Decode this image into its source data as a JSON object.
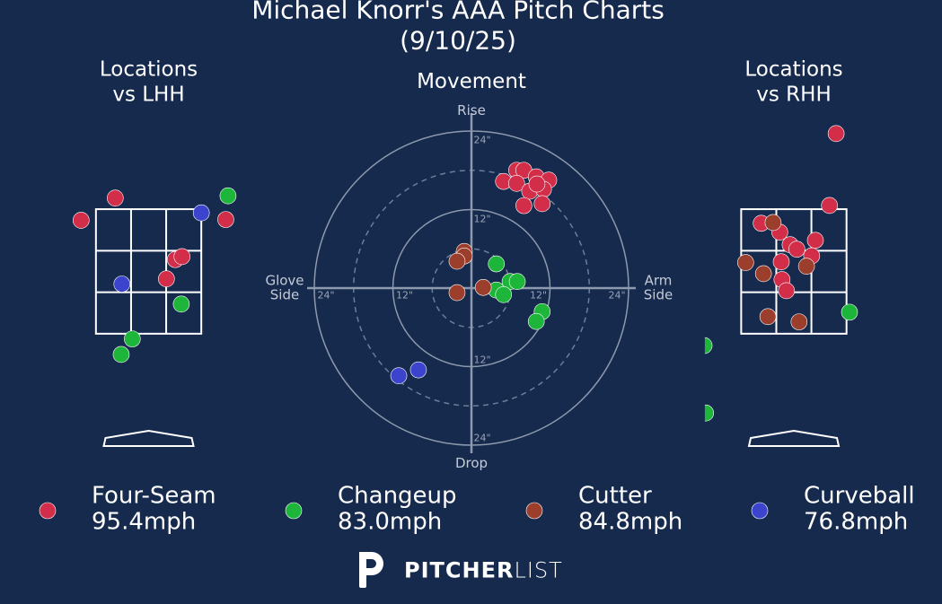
{
  "title": "Michael Knorr's AAA Pitch Charts (9/10/25)",
  "chart_data": [
    {
      "type": "scatter",
      "title": "Locations\nvs LHH",
      "xlim": [
        -1.6,
        1.6
      ],
      "ylim": [
        0,
        5
      ],
      "zone": {
        "x": [
          -0.71,
          0.71
        ],
        "y": [
          1.6,
          3.28
        ]
      },
      "series": [
        {
          "name": "Four-Seam",
          "color": "#d22d49",
          "x": [
            -0.45,
            -0.91,
            1.04,
            0.36,
            0.45,
            0.24
          ],
          "y": [
            3.43,
            3.13,
            3.14,
            2.6,
            2.64,
            2.34
          ]
        },
        {
          "name": "Changeup",
          "color": "#1db53a",
          "x": [
            1.07,
            0.44,
            -0.22,
            -0.37
          ],
          "y": [
            3.46,
            2.0,
            1.53,
            1.32
          ]
        },
        {
          "name": "Curveball",
          "color": "#3c44cd",
          "x": [
            0.71,
            -0.36
          ],
          "y": [
            3.23,
            2.27
          ]
        }
      ]
    },
    {
      "type": "scatter",
      "title": "Movement",
      "xlim": [
        -24,
        24
      ],
      "ylim": [
        -24,
        24
      ],
      "circles": [
        {
          "value": 12,
          "label": "12\""
        },
        {
          "value": 24,
          "label": "24\""
        }
      ],
      "dashed_circles": [
        6,
        18
      ],
      "top_label": "Rise",
      "bottom_label": "Drop",
      "left_label": "Glove\nSide",
      "right_label": "Arm\nSide",
      "series": [
        {
          "name": "Four-Seam",
          "color": "#d22d49",
          "x": [
            6.9,
            8.0,
            4.9,
            6.9,
            9.9,
            11.8,
            8.9,
            11.0,
            8.0,
            10.8,
            10.0
          ],
          "y": [
            18.0,
            18.0,
            16.3,
            16.0,
            17.0,
            16.5,
            14.8,
            15.1,
            12.6,
            12.9,
            15.9
          ]
        },
        {
          "name": "Changeup",
          "color": "#1db53a",
          "x": [
            3.8,
            5.9,
            7.0,
            3.8,
            4.9,
            10.8,
            9.9
          ],
          "y": [
            3.7,
            1.0,
            1.0,
            -0.3,
            -1.0,
            -3.6,
            -5.1
          ]
        },
        {
          "name": "Cutter",
          "color": "#9b3f2c",
          "x": [
            -1.1,
            -1.1,
            -2.2,
            -2.2,
            1.8
          ],
          "y": [
            5.6,
            4.9,
            4.1,
            -0.7,
            0.1
          ]
        },
        {
          "name": "Curveball",
          "color": "#3c44cd",
          "x": [
            -8.1,
            -11.1
          ],
          "y": [
            -12.5,
            -13.4
          ]
        }
      ]
    },
    {
      "type": "scatter",
      "title": "Locations\nvs RHH",
      "xlim": [
        -1.2,
        1.6
      ],
      "ylim": [
        0,
        5
      ],
      "zone": {
        "x": [
          -0.71,
          0.71
        ],
        "y": [
          1.6,
          3.28
        ]
      },
      "series": [
        {
          "name": "Four-Seam",
          "color": "#d22d49",
          "x": [
            0.57,
            0.48,
            -0.44,
            -0.19,
            0.29,
            -0.05,
            0.04,
            0.24,
            -0.17,
            -0.16,
            -0.1
          ],
          "y": [
            4.3,
            3.33,
            3.09,
            2.97,
            2.86,
            2.8,
            2.74,
            2.65,
            2.57,
            2.33,
            2.18
          ]
        },
        {
          "name": "Cutter",
          "color": "#9b3f2c",
          "x": [
            -0.28,
            -0.65,
            0.17,
            -0.41,
            -0.35,
            0.07
          ],
          "y": [
            3.1,
            2.56,
            2.51,
            2.41,
            1.83,
            1.76
          ]
        },
        {
          "name": "Changeup",
          "color": "#1db53a",
          "x": [
            0.75,
            -1.21,
            -1.19
          ],
          "y": [
            1.89,
            1.44,
            0.53
          ]
        }
      ]
    }
  ],
  "legend": [
    {
      "name": "Four-Seam",
      "speed": "95.4mph",
      "color": "#d22d49"
    },
    {
      "name": "Changeup",
      "speed": "83.0mph",
      "color": "#1db53a"
    },
    {
      "name": "Cutter",
      "speed": "84.8mph",
      "color": "#9b3f2c"
    },
    {
      "name": "Curveball",
      "speed": "76.8mph",
      "color": "#3c44cd"
    }
  ],
  "brand": {
    "bold": "PITCHER",
    "light": "LIST"
  }
}
